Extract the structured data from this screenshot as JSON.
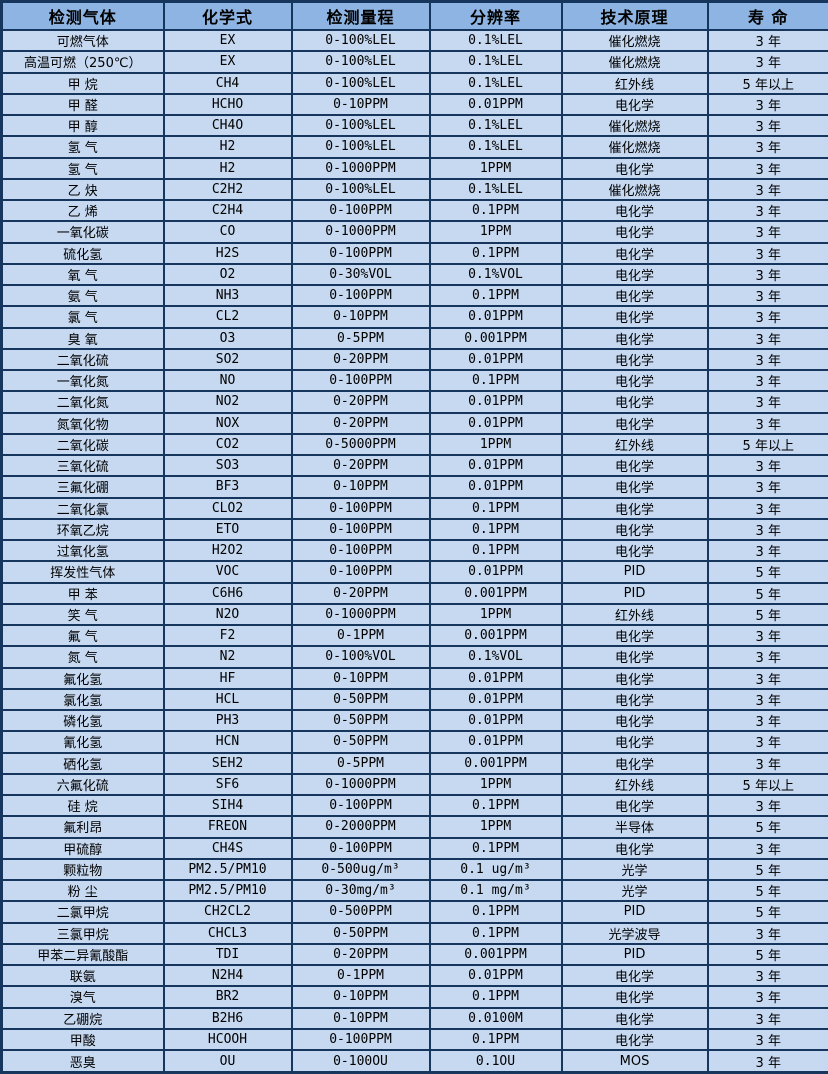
{
  "table": {
    "columns": [
      "检测气体",
      "化学式",
      "检测量程",
      "分辨率",
      "技术原理",
      "寿 命"
    ],
    "rows": [
      [
        "可燃气体",
        "EX",
        "0-100%LEL",
        "0.1%LEL",
        "催化燃烧",
        "3 年"
      ],
      [
        "高温可燃（250℃）",
        "EX",
        "0-100%LEL",
        "0.1%LEL",
        "催化燃烧",
        "3 年"
      ],
      [
        "甲 烷",
        "CH4",
        "0-100%LEL",
        "0.1%LEL",
        "红外线",
        "5 年以上"
      ],
      [
        "甲 醛",
        "HCHO",
        "0-10PPM",
        "0.01PPM",
        "电化学",
        "3 年"
      ],
      [
        "甲 醇",
        "CH4O",
        "0-100%LEL",
        "0.1%LEL",
        "催化燃烧",
        "3 年"
      ],
      [
        "氢 气",
        "H2",
        "0-100%LEL",
        "0.1%LEL",
        "催化燃烧",
        "3 年"
      ],
      [
        "氢 气",
        "H2",
        "0-1000PPM",
        "1PPM",
        "电化学",
        "3 年"
      ],
      [
        "乙 炔",
        "C2H2",
        "0-100%LEL",
        "0.1%LEL",
        "催化燃烧",
        "3 年"
      ],
      [
        "乙 烯",
        "C2H4",
        "0-100PPM",
        "0.1PPM",
        "电化学",
        "3 年"
      ],
      [
        "一氧化碳",
        "CO",
        "0-1000PPM",
        "1PPM",
        "电化学",
        "3 年"
      ],
      [
        "硫化氢",
        "H2S",
        "0-100PPM",
        "0.1PPM",
        "电化学",
        "3 年"
      ],
      [
        "氧 气",
        "O2",
        "0-30%VOL",
        "0.1%VOL",
        "电化学",
        "3 年"
      ],
      [
        "氨 气",
        "NH3",
        "0-100PPM",
        "0.1PPM",
        "电化学",
        "3 年"
      ],
      [
        "氯 气",
        "CL2",
        "0-10PPM",
        "0.01PPM",
        "电化学",
        "3 年"
      ],
      [
        "臭 氧",
        "O3",
        "0-5PPM",
        "0.001PPM",
        "电化学",
        "3 年"
      ],
      [
        "二氧化硫",
        "SO2",
        "0-20PPM",
        "0.01PPM",
        "电化学",
        "3 年"
      ],
      [
        "一氧化氮",
        "NO",
        "0-100PPM",
        "0.1PPM",
        "电化学",
        "3 年"
      ],
      [
        "二氧化氮",
        "NO2",
        "0-20PPM",
        "0.01PPM",
        "电化学",
        "3 年"
      ],
      [
        "氮氧化物",
        "NOX",
        "0-20PPM",
        "0.01PPM",
        "电化学",
        "3 年"
      ],
      [
        "二氧化碳",
        "CO2",
        "0-5000PPM",
        "1PPM",
        "红外线",
        "5 年以上"
      ],
      [
        "三氧化硫",
        "SO3",
        "0-20PPM",
        "0.01PPM",
        "电化学",
        "3 年"
      ],
      [
        "三氟化硼",
        "BF3",
        "0-10PPM",
        "0.01PPM",
        "电化学",
        "3 年"
      ],
      [
        "二氧化氯",
        "CLO2",
        "0-100PPM",
        "0.1PPM",
        "电化学",
        "3 年"
      ],
      [
        "环氧乙烷",
        "ETO",
        "0-100PPM",
        "0.1PPM",
        "电化学",
        "3 年"
      ],
      [
        "过氧化氢",
        "H2O2",
        "0-100PPM",
        "0.1PPM",
        "电化学",
        "3 年"
      ],
      [
        "挥发性气体",
        "VOC",
        "0-100PPM",
        "0.01PPM",
        "PID",
        "5 年"
      ],
      [
        "甲 苯",
        "C6H6",
        "0-20PPM",
        "0.001PPM",
        "PID",
        "5 年"
      ],
      [
        "笑 气",
        "N2O",
        "0-1000PPM",
        "1PPM",
        "红外线",
        "5 年"
      ],
      [
        "氟 气",
        "F2",
        "0-1PPM",
        "0.001PPM",
        "电化学",
        "3 年"
      ],
      [
        "氮 气",
        "N2",
        "0-100%VOL",
        "0.1%VOL",
        "电化学",
        "3 年"
      ],
      [
        "氟化氢",
        "HF",
        "0-10PPM",
        "0.01PPM",
        "电化学",
        "3 年"
      ],
      [
        "氯化氢",
        "HCL",
        "0-50PPM",
        "0.01PPM",
        "电化学",
        "3 年"
      ],
      [
        "磷化氢",
        "PH3",
        "0-50PPM",
        "0.01PPM",
        "电化学",
        "3 年"
      ],
      [
        "氰化氢",
        "HCN",
        "0-50PPM",
        "0.01PPM",
        "电化学",
        "3 年"
      ],
      [
        "硒化氢",
        "SEH2",
        "0-5PPM",
        "0.001PPM",
        "电化学",
        "3 年"
      ],
      [
        "六氟化硫",
        "SF6",
        "0-1000PPM",
        "1PPM",
        "红外线",
        "5 年以上"
      ],
      [
        "硅 烷",
        "SIH4",
        "0-100PPM",
        "0.1PPM",
        "电化学",
        "3 年"
      ],
      [
        "氟利昂",
        "FREON",
        "0-2000PPM",
        "1PPM",
        "半导体",
        "5 年"
      ],
      [
        "甲硫醇",
        "CH4S",
        "0-100PPM",
        "0.1PPM",
        "电化学",
        "3 年"
      ],
      [
        "颗粒物",
        "PM2.5/PM10",
        "0-500ug/m³",
        "0.1 ug/m³",
        "光学",
        "5 年"
      ],
      [
        "粉 尘",
        "PM2.5/PM10",
        "0-30mg/m³",
        "0.1 mg/m³",
        "光学",
        "5 年"
      ],
      [
        "二氯甲烷",
        "CH2CL2",
        "0-500PPM",
        "0.1PPM",
        "PID",
        "5 年"
      ],
      [
        "三氯甲烷",
        "CHCL3",
        "0-50PPM",
        "0.1PPM",
        "光学波导",
        "3 年"
      ],
      [
        "甲苯二异氰酸酯",
        "TDI",
        "0-20PPM",
        "0.001PPM",
        "PID",
        "5 年"
      ],
      [
        "联氨",
        "N2H4",
        "0-1PPM",
        "0.01PPM",
        "电化学",
        "3 年"
      ],
      [
        "溴气",
        "BR2",
        "0-10PPM",
        "0.1PPM",
        "电化学",
        "3 年"
      ],
      [
        "乙硼烷",
        "B2H6",
        "0-10PPM",
        "0.0100M",
        "电化学",
        "3 年"
      ],
      [
        "甲酸",
        "HCOOH",
        "0-100PPM",
        "0.1PPM",
        "电化学",
        "3 年"
      ],
      [
        "恶臭",
        "OU",
        "0-100OU",
        "0.1OU",
        "MOS",
        "3 年"
      ]
    ]
  },
  "colors": {
    "header_bg": "#8db4e2",
    "row_bg": "#c6d9f1",
    "border": "#17365d",
    "text": "#000000"
  }
}
